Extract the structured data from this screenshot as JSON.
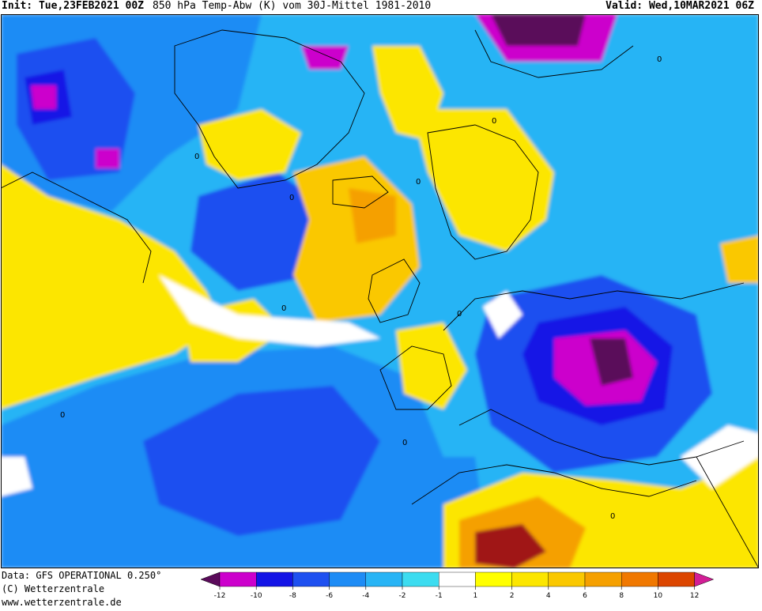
{
  "header": {
    "init": "Init: Tue,23FEB2021 00Z",
    "title": "850 hPa Temp-Abw (K) vom 30J-Mittel 1981-2010",
    "valid": "Valid: Wed,10MAR2021 06Z"
  },
  "footer": {
    "data_source": "Data: GFS OPERATIONAL 0.250°",
    "copyright": "(C) Wetterzentrale",
    "url": "www.wetterzentrale.de"
  },
  "colors": {
    "ocean_white": "#ffffff",
    "level_m12": "#5a0a5a",
    "level_m10": "#cc00cc",
    "level_m8": "#1414e6",
    "level_m6": "#1e50f0",
    "level_m4": "#1e8cf5",
    "level_m2": "#28b4f5",
    "level_m1": "#3cdcf0",
    "level_p1": "#ffff00",
    "level_p2": "#fce600",
    "level_p4": "#fac800",
    "level_p6": "#f5a000",
    "level_p8": "#f07800",
    "level_p10": "#dc4600",
    "level_p12": "#a01414",
    "level_max": "#d21e96"
  },
  "legend": {
    "ticks": [
      "-12",
      "-10",
      "-8",
      "-6",
      "-4",
      "-2",
      "-1",
      "1",
      "2",
      "4",
      "6",
      "8",
      "10",
      "12"
    ]
  },
  "map": {
    "contour_labels": [
      "0",
      "0",
      "0",
      "0",
      "0",
      "0",
      "0",
      "0",
      "0",
      "0"
    ]
  }
}
